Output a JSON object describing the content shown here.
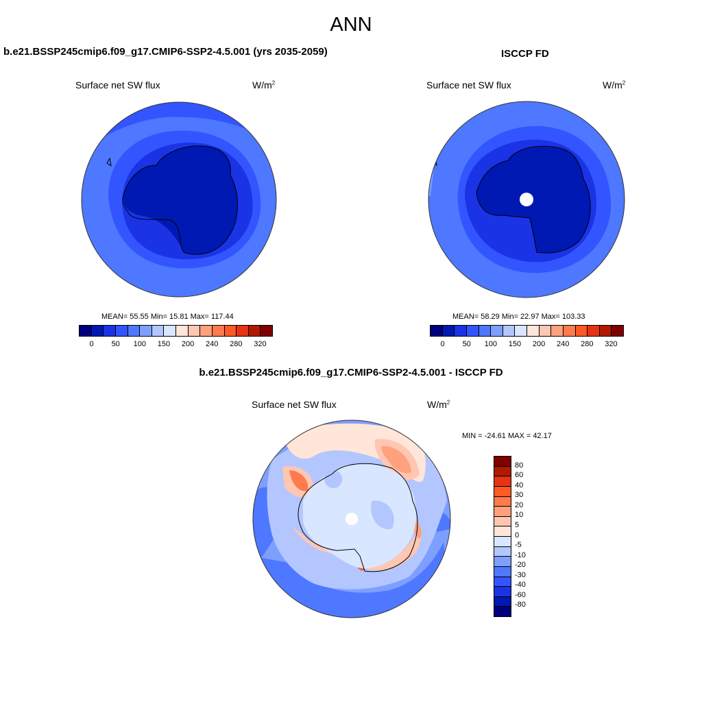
{
  "figure": {
    "season": "ANN",
    "units_base": "W/m",
    "units_exp": "2"
  },
  "panels": {
    "model": {
      "title": "b.e21.BSSP245cmip6.f09_g17.CMIP6-SSP2-4.5.001 (yrs 2035-2059)",
      "variable": "Surface net SW flux",
      "stats": "MEAN=  55.55  Min=  15.81  Max= 117.44"
    },
    "obs": {
      "title": "ISCCP FD",
      "variable": "Surface net SW flux",
      "stats": "MEAN=  58.29  Min=  22.97  Max= 103.33"
    },
    "diff": {
      "title": "b.e21.BSSP245cmip6.f09_g17.CMIP6-SSP2-4.5.001 - ISCCP FD",
      "variable": "Surface net SW flux",
      "stats": "MIN = -24.61 MAX =  42.17"
    }
  },
  "abs_colorbar": {
    "colors": [
      "#00007f",
      "#0019b2",
      "#1a33e5",
      "#3355ff",
      "#4d78ff",
      "#7f9fff",
      "#b3c6ff",
      "#d9e6ff",
      "#ffe6d9",
      "#ffc6b2",
      "#ffa07f",
      "#ff7a4d",
      "#ff5a26",
      "#e53314",
      "#b21a00",
      "#7f0000"
    ],
    "tick_labels": [
      "0",
      "50",
      "100",
      "150",
      "200",
      "240",
      "280",
      "320"
    ]
  },
  "diff_colorbar": {
    "colors": [
      "#7f0000",
      "#b21a00",
      "#e53314",
      "#ff5a26",
      "#ff7a4d",
      "#ffa07f",
      "#ffc6b2",
      "#ffe6d9",
      "#d9e6ff",
      "#b3c6ff",
      "#7f9fff",
      "#4d78ff",
      "#3355ff",
      "#1a33e5",
      "#0019b2",
      "#00007f"
    ],
    "tick_labels": [
      "80",
      "60",
      "40",
      "30",
      "20",
      "10",
      "5",
      "0",
      "-5",
      "-10",
      "-20",
      "-30",
      "-40",
      "-60",
      "-80"
    ]
  }
}
